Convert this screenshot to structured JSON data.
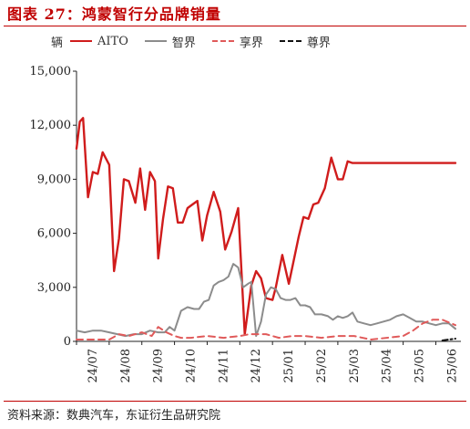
{
  "title": "图表 27：鸿蒙智行分品牌销量",
  "source": "资料来源：数典汽车，东证衍生品研究院",
  "unit_label": "辆",
  "colors": {
    "red": "#d01c1c",
    "gray": "#8c8c8c",
    "pink": "#e05a5a",
    "black": "#111111",
    "title": "#c00000"
  },
  "chart_data": {
    "type": "line",
    "title": "图表 27：鸿蒙智行分品牌销量",
    "ylabel": "辆",
    "ylim": [
      0,
      15000
    ],
    "yticks": [
      0,
      3000,
      6000,
      9000,
      12000,
      15000
    ],
    "ytick_labels": [
      "0",
      "3,000",
      "6,000",
      "9,000",
      "12,000",
      "15,000"
    ],
    "x_tick_labels": [
      "24/07",
      "24/08",
      "24/09",
      "24/10",
      "24/11",
      "24/12",
      "25/01",
      "25/02",
      "25/03",
      "25/04",
      "25/05",
      "25/06"
    ],
    "x_range": [
      0,
      11.6
    ],
    "legend_position": "top",
    "grid": false,
    "series": [
      {
        "name": "AITO",
        "color": "#d01c1c",
        "style": "solid",
        "x": [
          0,
          0.1,
          0.2,
          0.35,
          0.5,
          0.65,
          0.8,
          1.0,
          1.15,
          1.3,
          1.45,
          1.6,
          1.8,
          1.95,
          2.1,
          2.25,
          2.4,
          2.5,
          2.65,
          2.8,
          2.95,
          3.1,
          3.25,
          3.4,
          3.55,
          3.7,
          3.85,
          4.0,
          4.2,
          4.4,
          4.55,
          4.75,
          4.95,
          5.15,
          5.35,
          5.5,
          5.65,
          5.8,
          6.0,
          6.1,
          6.3,
          6.5,
          6.65,
          6.8,
          6.95,
          7.1,
          7.25,
          7.4,
          7.6,
          7.8,
          8.0,
          8.15,
          8.3,
          8.45,
          8.6,
          8.8,
          8.95,
          9.1,
          9.3,
          9.5,
          9.7,
          9.9,
          10.1,
          10.3,
          10.5,
          10.7,
          10.85,
          11.0,
          11.15,
          11.3,
          11.45,
          11.6
        ],
        "values": [
          10700,
          12200,
          12400,
          8000,
          9400,
          9300,
          10500,
          9800,
          3900,
          5700,
          9000,
          8900,
          7700,
          9600,
          7300,
          9400,
          8900,
          4600,
          6800,
          8600,
          8500,
          6600,
          6600,
          7400,
          7600,
          7800,
          5600,
          7000,
          8300,
          7200,
          5100,
          6100,
          7400,
          400,
          3100,
          3900,
          3500,
          2400,
          2300,
          3000,
          4800,
          3200,
          4500,
          5800,
          6900,
          6800,
          7600,
          7700,
          8500,
          10200,
          9000,
          9000,
          10000,
          9900,
          9900,
          9900,
          9900,
          9900,
          9900,
          9900,
          9900,
          9900,
          9900,
          9900,
          9900,
          9900,
          9900,
          9900,
          9900,
          9900,
          9900,
          9900
        ]
      },
      {
        "name": "智界",
        "color": "#8c8c8c",
        "style": "solid",
        "x": [
          0,
          0.25,
          0.5,
          0.75,
          1.0,
          1.25,
          1.5,
          1.75,
          2.0,
          2.25,
          2.5,
          2.7,
          2.85,
          3.0,
          3.2,
          3.4,
          3.6,
          3.75,
          3.9,
          4.05,
          4.2,
          4.35,
          4.5,
          4.65,
          4.8,
          4.95,
          5.1,
          5.25,
          5.35,
          5.5,
          5.65,
          5.8,
          5.95,
          6.1,
          6.25,
          6.4,
          6.55,
          6.7,
          6.85,
          7.0,
          7.15,
          7.3,
          7.5,
          7.7,
          7.85,
          8.0,
          8.15,
          8.3,
          8.45,
          8.6,
          8.8,
          9.0,
          9.2,
          9.4,
          9.6,
          9.8,
          10.0,
          10.2,
          10.4,
          10.6,
          10.8,
          11.0,
          11.2,
          11.4,
          11.6
        ],
        "values": [
          600,
          500,
          600,
          600,
          500,
          400,
          300,
          400,
          400,
          600,
          500,
          500,
          800,
          600,
          1700,
          1900,
          1800,
          1800,
          2200,
          2300,
          3100,
          3300,
          3400,
          3600,
          4300,
          4100,
          3000,
          3200,
          3300,
          300,
          1100,
          2600,
          3000,
          2900,
          2400,
          2300,
          2300,
          2400,
          2000,
          2000,
          1900,
          1500,
          1500,
          1400,
          1200,
          1400,
          1300,
          1400,
          1600,
          1100,
          1000,
          900,
          1000,
          1100,
          1200,
          1400,
          1500,
          1300,
          1100,
          1100,
          1000,
          900,
          1000,
          1000,
          700
        ]
      },
      {
        "name": "享界",
        "color": "#e05a5a",
        "style": "dashed",
        "x": [
          0,
          0.5,
          1.0,
          1.3,
          1.6,
          2.0,
          2.3,
          2.5,
          2.75,
          3.0,
          3.2,
          3.5,
          4.0,
          4.5,
          5.0,
          5.3,
          5.5,
          5.8,
          6.2,
          6.6,
          7.0,
          7.5,
          8.0,
          8.5,
          9.0,
          9.5,
          10.0,
          10.3,
          10.6,
          10.9,
          11.2,
          11.6
        ],
        "values": [
          100,
          100,
          100,
          400,
          300,
          500,
          300,
          800,
          500,
          300,
          200,
          200,
          300,
          200,
          300,
          400,
          400,
          400,
          200,
          300,
          300,
          200,
          300,
          300,
          100,
          200,
          300,
          600,
          1000,
          1200,
          1200,
          900
        ]
      },
      {
        "name": "尊界",
        "color": "#111111",
        "style": "dashdot",
        "x": [
          11.2,
          11.4,
          11.6
        ],
        "values": [
          50,
          100,
          150
        ]
      }
    ]
  }
}
